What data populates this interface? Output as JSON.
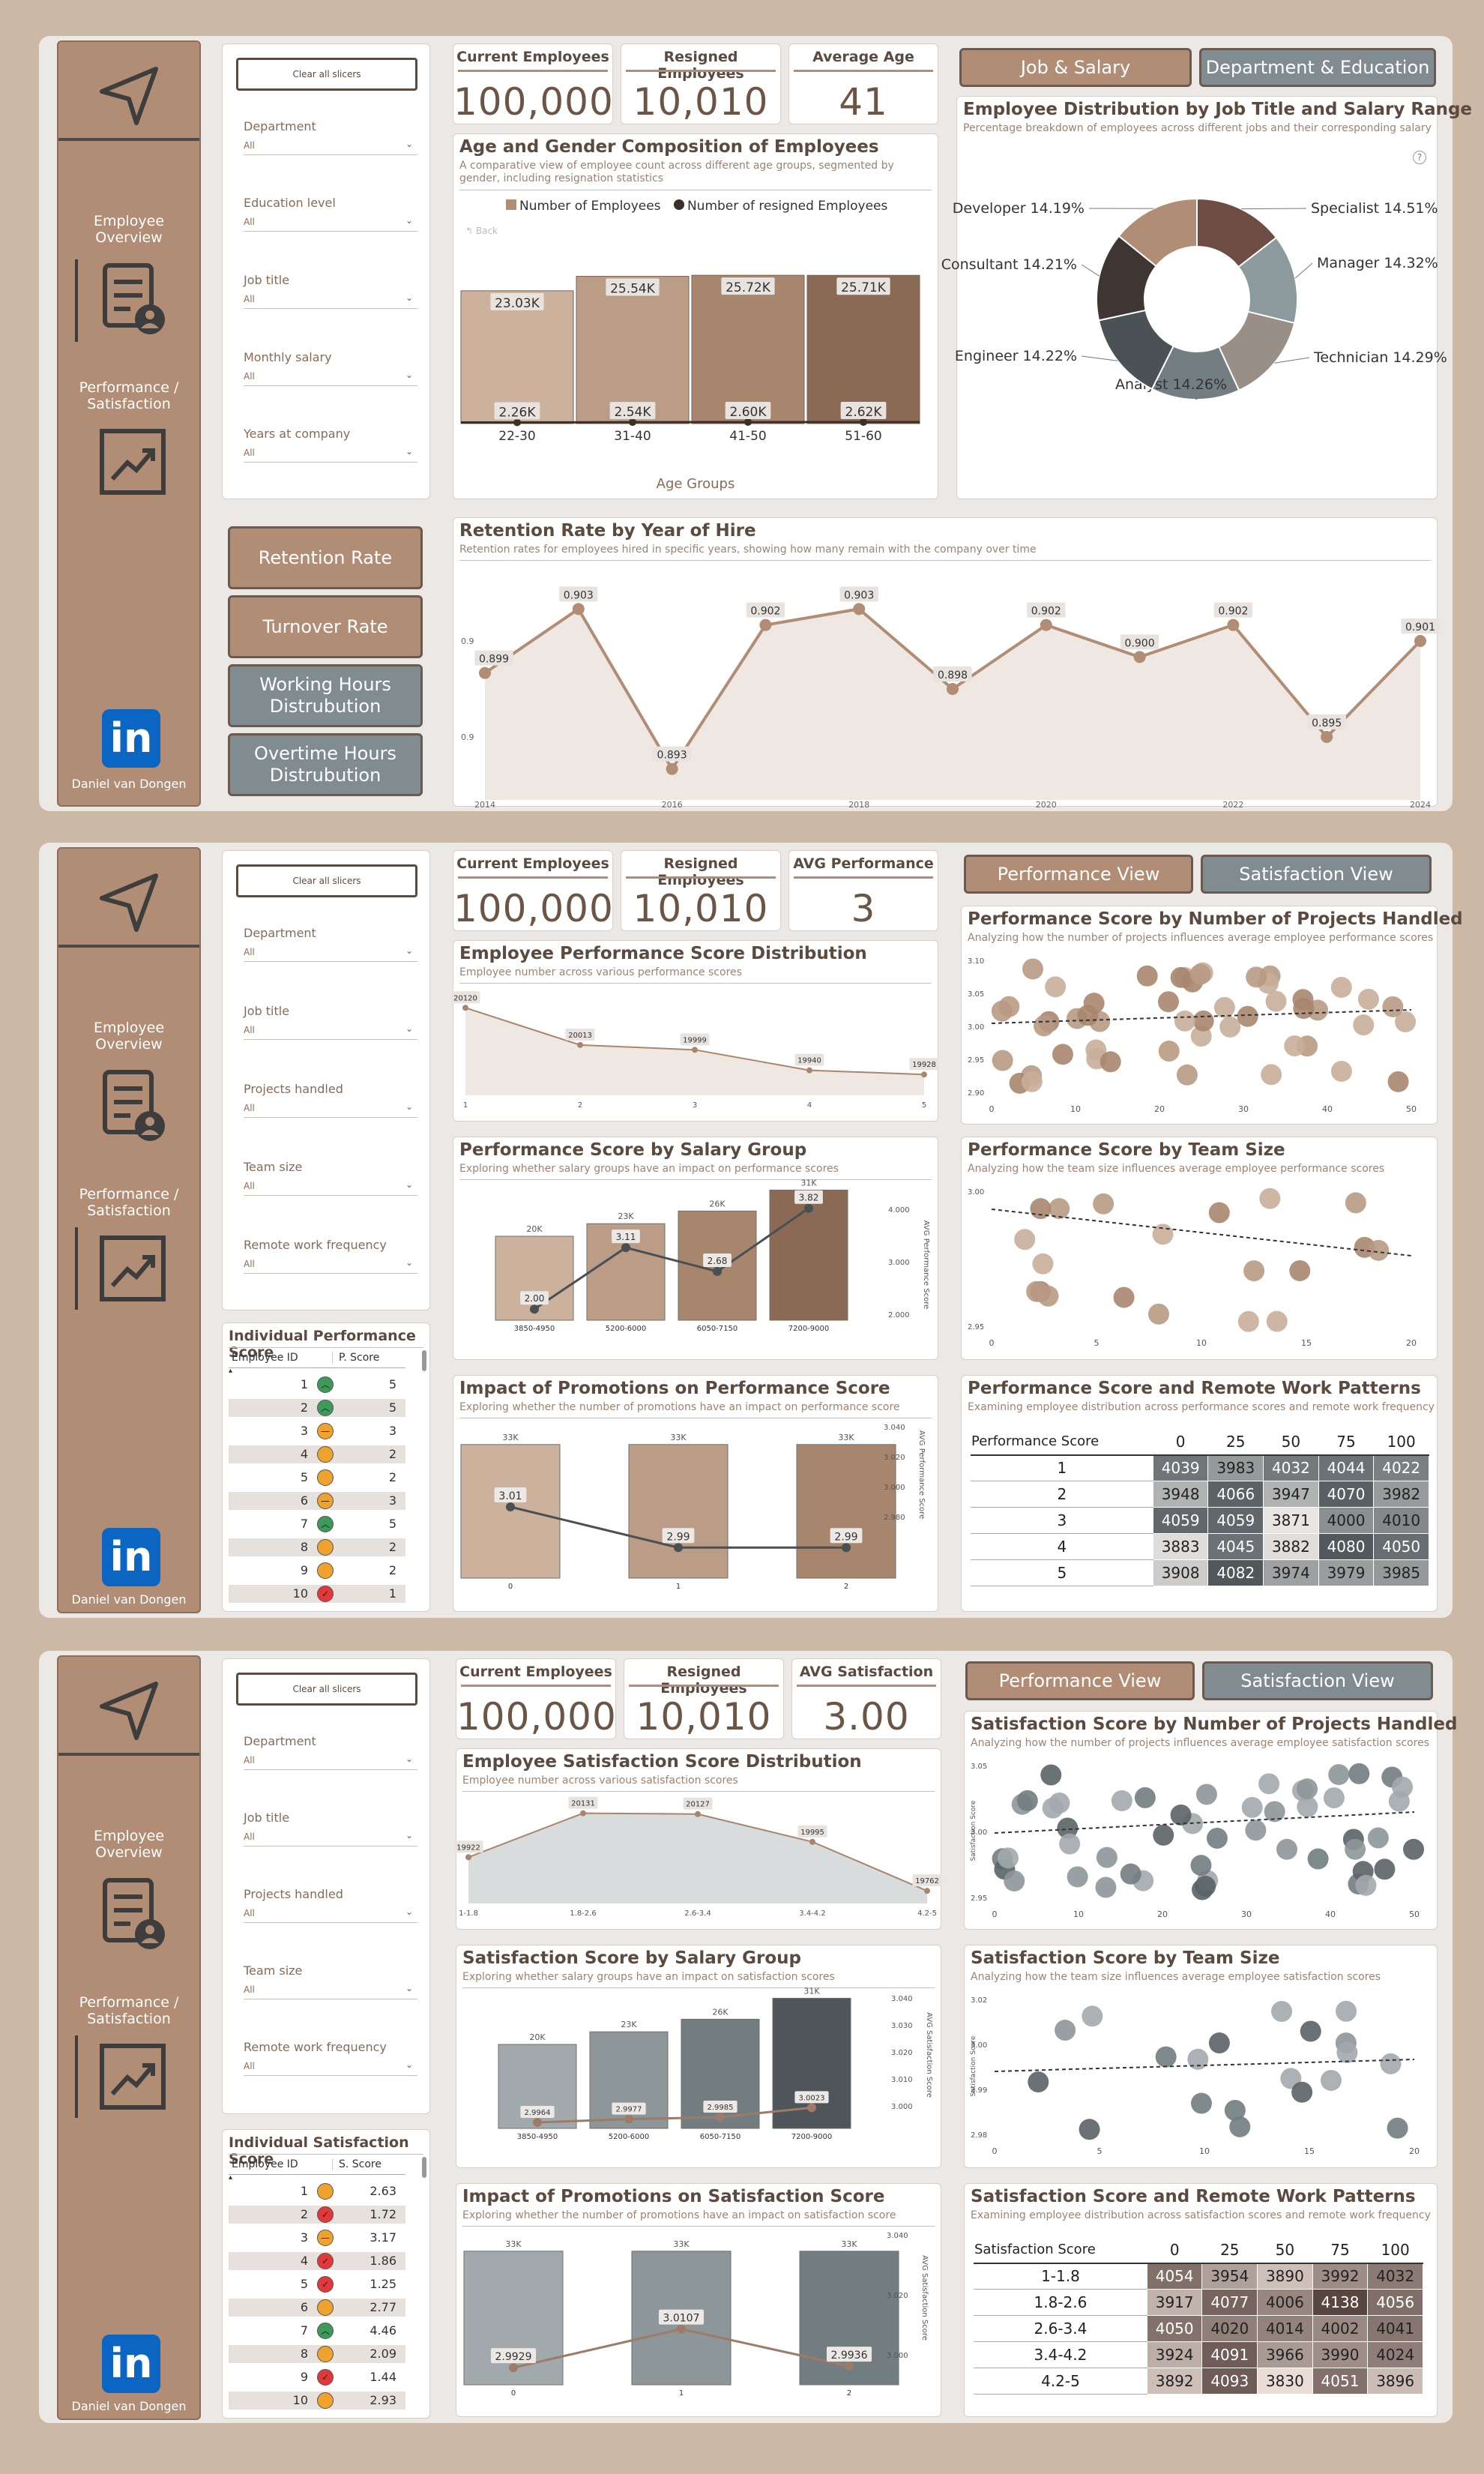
{
  "colors": {
    "tan": "#b08d74",
    "tan_dark": "#8a6e5b",
    "gray": "#818c90",
    "bg": "#cbb8a5",
    "brown_text": "#5b4a40"
  },
  "sidebar": {
    "employee_overview": "Employee Overview",
    "performance_satisfaction": "Performance / Satisfaction",
    "linkedin": "in",
    "author": "Daniel van Dongen",
    "icons": [
      "navigate-arrow-icon",
      "document-person-icon",
      "trending-chart-icon",
      "linkedin-icon"
    ]
  },
  "slicer_option": "All",
  "p1": {
    "clear": "Clear all slicers",
    "slicers": [
      "Department",
      "Education level",
      "Job title",
      "Monthly salary",
      "Years at company"
    ],
    "kpis": [
      {
        "title": "Current Employees",
        "value": "100,000"
      },
      {
        "title": "Resigned Employees",
        "value": "10,010"
      },
      {
        "title": "Average Age",
        "value": "41"
      }
    ],
    "nav": [
      "Job & Salary",
      "Department & Education"
    ],
    "buttons": [
      "Retention Rate",
      "Turnover Rate",
      "Working Hours Distrubution",
      "Overtime Hours Distrubution"
    ],
    "age": {
      "title": "Age and Gender Composition of Employees",
      "subtitle": "A comparative view of employee count across different age groups, segmented by gender, including resignation statistics",
      "legend": [
        "Number of Employees",
        "Number of resigned Employees"
      ],
      "back": "Back",
      "xlabel": "Age Groups"
    },
    "donut": {
      "title": "Employee Distribution by Job Title and Salary Range",
      "subtitle": "Percentage breakdown of employees across different jobs and their corresponding salary",
      "help": "?"
    },
    "retention": {
      "title": "Retention Rate by Year of Hire",
      "subtitle": "Retention rates for employees hired in specific years, showing how many remain with the company over time"
    }
  },
  "p2": {
    "clear": "Clear all slicers",
    "slicers": [
      "Department",
      "Job title",
      "Projects handled",
      "Team size",
      "Remote work frequency"
    ],
    "kpis": [
      {
        "title": "Current Employees",
        "value": "100,000"
      },
      {
        "title": "Resigned Employees",
        "value": "10,010"
      },
      {
        "title": "AVG Performance",
        "value": "3"
      }
    ],
    "nav": [
      "Performance View",
      "Satisfaction View"
    ],
    "dist": {
      "title": "Employee Performance Score Distribution",
      "subtitle": "Employee number across various performance scores"
    },
    "salary": {
      "title": "Performance Score by Salary Group",
      "subtitle": "Exploring whether salary groups have an impact on performance scores",
      "y2label": "AVG Performance Score"
    },
    "promo": {
      "title": "Impact of Promotions on Performance Score",
      "subtitle": "Exploring whether the number of promotions have an impact on performance score",
      "y2label": "AVG Performance Score"
    },
    "projects": {
      "title": "Performance Score by Number of Projects Handled",
      "subtitle": "Analyzing how the number of projects influences average employee performance scores"
    },
    "team": {
      "title": "Performance Score by Team Size",
      "subtitle": "Analyzing how the team size influences average employee performance scores"
    },
    "remote": {
      "title": "Performance Score and Remote Work Patterns",
      "subtitle": "Examining employee distribution across performance scores and remote work frequency",
      "corner": "Performance Score",
      "cols": [
        "0",
        "25",
        "50",
        "75",
        "100"
      ],
      "rows": [
        "1",
        "2",
        "3",
        "4",
        "5"
      ],
      "values": [
        [
          4039,
          3983,
          4032,
          4044,
          4022
        ],
        [
          3948,
          4066,
          3947,
          4070,
          3982
        ],
        [
          4059,
          4059,
          3871,
          4000,
          4010
        ],
        [
          3883,
          4045,
          3882,
          4080,
          4050
        ],
        [
          3908,
          4082,
          3974,
          3979,
          3985
        ]
      ]
    },
    "table": {
      "title": "Individual Performance Score",
      "col1": "Employee ID",
      "col2": "P. Score",
      "rows": [
        [
          "1",
          "5"
        ],
        [
          "2",
          "5"
        ],
        [
          "3",
          "3"
        ],
        [
          "4",
          "2"
        ],
        [
          "5",
          "2"
        ],
        [
          "6",
          "3"
        ],
        [
          "7",
          "5"
        ],
        [
          "8",
          "2"
        ],
        [
          "9",
          "2"
        ],
        [
          "10",
          "1"
        ]
      ]
    }
  },
  "p3": {
    "clear": "Clear all slicers",
    "slicers": [
      "Department",
      "Job title",
      "Projects handled",
      "Team size",
      "Remote work frequency"
    ],
    "kpis": [
      {
        "title": "Current Employees",
        "value": "100,000"
      },
      {
        "title": "Resigned Employees",
        "value": "10,010"
      },
      {
        "title": "AVG Satisfaction",
        "value": "3.00"
      }
    ],
    "nav": [
      "Performance View",
      "Satisfaction View"
    ],
    "dist": {
      "title": "Employee Satisfaction Score Distribution",
      "subtitle": "Employee number across various satisfaction scores"
    },
    "salary": {
      "title": "Satisfaction Score by Salary Group",
      "subtitle": "Exploring whether salary groups have an impact on satisfaction scores",
      "y2label": "AVG Satisfaction Score"
    },
    "promo": {
      "title": "Impact of Promotions on Satisfaction Score",
      "subtitle": "Exploring whether the number of promotions have an impact on satisfaction score",
      "y2label": "AVG Satisfaction Score"
    },
    "projects": {
      "title": "Satisfaction Score by Number of Projects Handled",
      "subtitle": "Analyzing how the number of projects influences average employee satisfaction scores",
      "ylabel": "Satisfaction Score"
    },
    "team": {
      "title": "Satisfaction Score by Team Size",
      "subtitle": "Analyzing how the team size influences average employee satisfaction scores",
      "ylabel": "Satisfaction Score"
    },
    "remote": {
      "title": "Satisfaction Score and Remote Work Patterns",
      "subtitle": "Examining employee distribution across satisfaction scores and remote work frequency",
      "corner": "Satisfaction Score",
      "cols": [
        "0",
        "25",
        "50",
        "75",
        "100"
      ],
      "rows": [
        "1-1.8",
        "1.8-2.6",
        "2.6-3.4",
        "3.4-4.2",
        "4.2-5"
      ],
      "values": [
        [
          4054,
          3954,
          3890,
          3992,
          4032
        ],
        [
          3917,
          4077,
          4006,
          4138,
          4056
        ],
        [
          4050,
          4020,
          4014,
          4002,
          4041
        ],
        [
          3924,
          4091,
          3966,
          3990,
          4024
        ],
        [
          3892,
          4093,
          3830,
          4051,
          3896
        ]
      ]
    },
    "table": {
      "title": "Individual Satisfaction Score",
      "col1": "Employee ID",
      "col2": "S. Score",
      "rows": [
        [
          "1",
          "2.63"
        ],
        [
          "2",
          "1.72"
        ],
        [
          "3",
          "3.17"
        ],
        [
          "4",
          "1.86"
        ],
        [
          "5",
          "1.25"
        ],
        [
          "6",
          "2.77"
        ],
        [
          "7",
          "4.46"
        ],
        [
          "8",
          "2.09"
        ],
        [
          "9",
          "1.44"
        ],
        [
          "10",
          "2.93"
        ]
      ]
    }
  },
  "chart_data": [
    {
      "id": "age_gender",
      "type": "bar",
      "categories": [
        "22-30",
        "31-40",
        "41-50",
        "51-60"
      ],
      "series": [
        {
          "name": "Number of Employees",
          "values": [
            23030,
            25540,
            25720,
            25710
          ],
          "labels": [
            "23.03K",
            "25.54K",
            "25.72K",
            "25.71K"
          ]
        },
        {
          "name": "Number of resigned Employees",
          "values": [
            2260,
            2540,
            2600,
            2620
          ],
          "labels": [
            "2.26K",
            "2.54K",
            "2.60K",
            "2.62K"
          ]
        }
      ],
      "xlabel": "Age Groups"
    },
    {
      "id": "job_donut",
      "type": "pie",
      "categories": [
        "Specialist",
        "Manager",
        "Technician",
        "Analyst",
        "Engineer",
        "Consultant",
        "Developer"
      ],
      "values": [
        14.51,
        14.32,
        14.29,
        14.26,
        14.22,
        14.21,
        14.19
      ],
      "labels": [
        "Specialist 14.51%",
        "Manager 14.32%",
        "Technician 14.29%",
        "Analyst 14.26%",
        "Engineer 14.22%",
        "Consultant 14.21%",
        "Developer 14.19%"
      ],
      "colors": [
        "#6e4e44",
        "#8c999d",
        "#9a8f87",
        "#737e82",
        "#4a5256",
        "#3f3532",
        "#b08d74"
      ]
    },
    {
      "id": "retention",
      "type": "area",
      "x": [
        2014,
        2015,
        2016,
        2017,
        2018,
        2019,
        2020,
        2021,
        2022,
        2023,
        2024
      ],
      "values": [
        0.899,
        0.903,
        0.893,
        0.902,
        0.903,
        0.898,
        0.902,
        0.9,
        0.902,
        0.895,
        0.901
      ],
      "labels": [
        "0.899",
        "0.903",
        "0.893",
        "0.902",
        "0.903",
        "0.898",
        "0.902",
        "0.900",
        "0.902",
        "0.895",
        "0.901"
      ],
      "xticks": [
        "2014",
        "2016",
        "2018",
        "2020",
        "2022",
        "2024"
      ],
      "yticks": [
        "0.9",
        "0.9"
      ]
    },
    {
      "id": "perf_dist",
      "type": "area",
      "categories": [
        "1",
        "2",
        "3",
        "4",
        "5"
      ],
      "values": [
        20120,
        20013,
        19999,
        19940,
        19928
      ]
    },
    {
      "id": "perf_salary",
      "type": "bar",
      "categories": [
        "3850-4950",
        "5200-6000",
        "6050-7150",
        "7200-9000"
      ],
      "bar_labels": [
        "20K",
        "23K",
        "26K",
        "31K"
      ],
      "bar_values": [
        20,
        23,
        26,
        31
      ],
      "line_values": [
        2.0,
        3.11,
        2.68,
        3.82
      ],
      "line_labels": [
        "2.00",
        "3.11",
        "2.68",
        "3.82"
      ],
      "y2ticks": [
        "4.000",
        "3.000",
        "2.000"
      ]
    },
    {
      "id": "perf_promo",
      "type": "bar",
      "categories": [
        "0",
        "1",
        "2"
      ],
      "bar_labels": [
        "33K",
        "33K",
        "33K"
      ],
      "bar_values": [
        33,
        33,
        33
      ],
      "line_values": [
        3.01,
        2.99,
        2.99
      ],
      "line_labels": [
        "3.01",
        "2.99",
        "2.99"
      ],
      "y2ticks": [
        "3.040",
        "3.020",
        "3.000",
        "2.980"
      ]
    },
    {
      "id": "perf_projects",
      "type": "scatter",
      "xticks": [
        "0",
        "10",
        "20",
        "30",
        "40",
        "50"
      ],
      "yticks": [
        "3.10",
        "3.05",
        "3.00",
        "2.95",
        "2.90"
      ],
      "xlim": [
        0,
        50
      ],
      "ylim": [
        2.9,
        3.1
      ]
    },
    {
      "id": "perf_team",
      "type": "scatter",
      "xticks": [
        "0",
        "5",
        "10",
        "15",
        "20"
      ],
      "yticks": [
        "3.00",
        "2.95"
      ],
      "xlim": [
        0,
        20
      ],
      "ylim": [
        2.92,
        3.04
      ]
    },
    {
      "id": "sat_dist",
      "type": "area",
      "categories": [
        "1-1.8",
        "1.8-2.6",
        "2.6-3.4",
        "3.4-4.2",
        "4.2-5"
      ],
      "values": [
        19922,
        20131,
        20127,
        19995,
        19762
      ],
      "labels": [
        "19922",
        "20131",
        "20127",
        "19995",
        "19762"
      ]
    },
    {
      "id": "sat_salary",
      "type": "bar",
      "categories": [
        "3850-4950",
        "5200-6000",
        "6050-7150",
        "7200-9000"
      ],
      "bar_labels": [
        "20K",
        "23K",
        "26K",
        "31K"
      ],
      "bar_values": [
        20,
        23,
        26,
        31
      ],
      "line_values": [
        2.9964,
        2.9977,
        2.9985,
        3.0023
      ],
      "line_labels": [
        "2.9964",
        "2.9977",
        "2.9985",
        "3.0023"
      ],
      "y2ticks": [
        "3.040",
        "3.030",
        "3.020",
        "3.010",
        "3.000"
      ]
    },
    {
      "id": "sat_promo",
      "type": "bar",
      "categories": [
        "0",
        "1",
        "2"
      ],
      "bar_labels": [
        "33K",
        "33K",
        "33K"
      ],
      "bar_values": [
        33,
        33,
        33
      ],
      "line_values": [
        2.9929,
        3.0107,
        2.9936
      ],
      "line_labels": [
        "2.9929",
        "3.0107",
        "2.9936"
      ],
      "y2ticks": [
        "3.040",
        "3.020",
        "3.000"
      ]
    },
    {
      "id": "sat_projects",
      "type": "scatter",
      "xticks": [
        "0",
        "10",
        "20",
        "30",
        "40",
        "50"
      ],
      "yticks": [
        "3.05",
        "3.00",
        "2.95"
      ],
      "xlim": [
        0,
        50
      ],
      "ylim": [
        2.92,
        3.08
      ]
    },
    {
      "id": "sat_team",
      "type": "scatter",
      "xticks": [
        "0",
        "5",
        "10",
        "15",
        "20"
      ],
      "yticks": [
        "3.02",
        "3.00",
        "2.99",
        "2.98"
      ],
      "xlim": [
        0,
        20
      ],
      "ylim": [
        2.975,
        3.03
      ]
    }
  ]
}
